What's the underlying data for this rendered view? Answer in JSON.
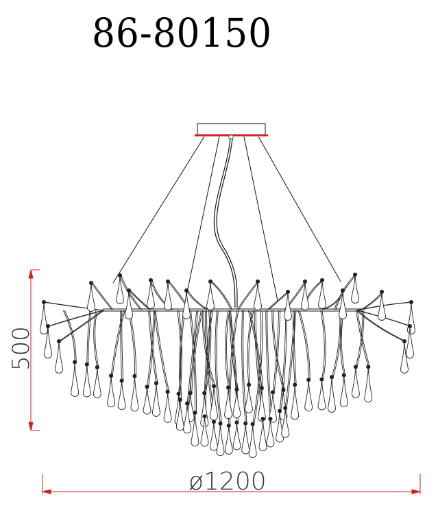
{
  "title": "86-80150",
  "dimensions": {
    "height_label": "500",
    "diameter_label": "ø1200"
  },
  "colors": {
    "line": "#000000",
    "dimension": "#d02020",
    "canopy_base": "#d02020"
  },
  "drawing": {
    "subject": "chandelier",
    "canopy_wires": 4,
    "center_cord": 1
  }
}
